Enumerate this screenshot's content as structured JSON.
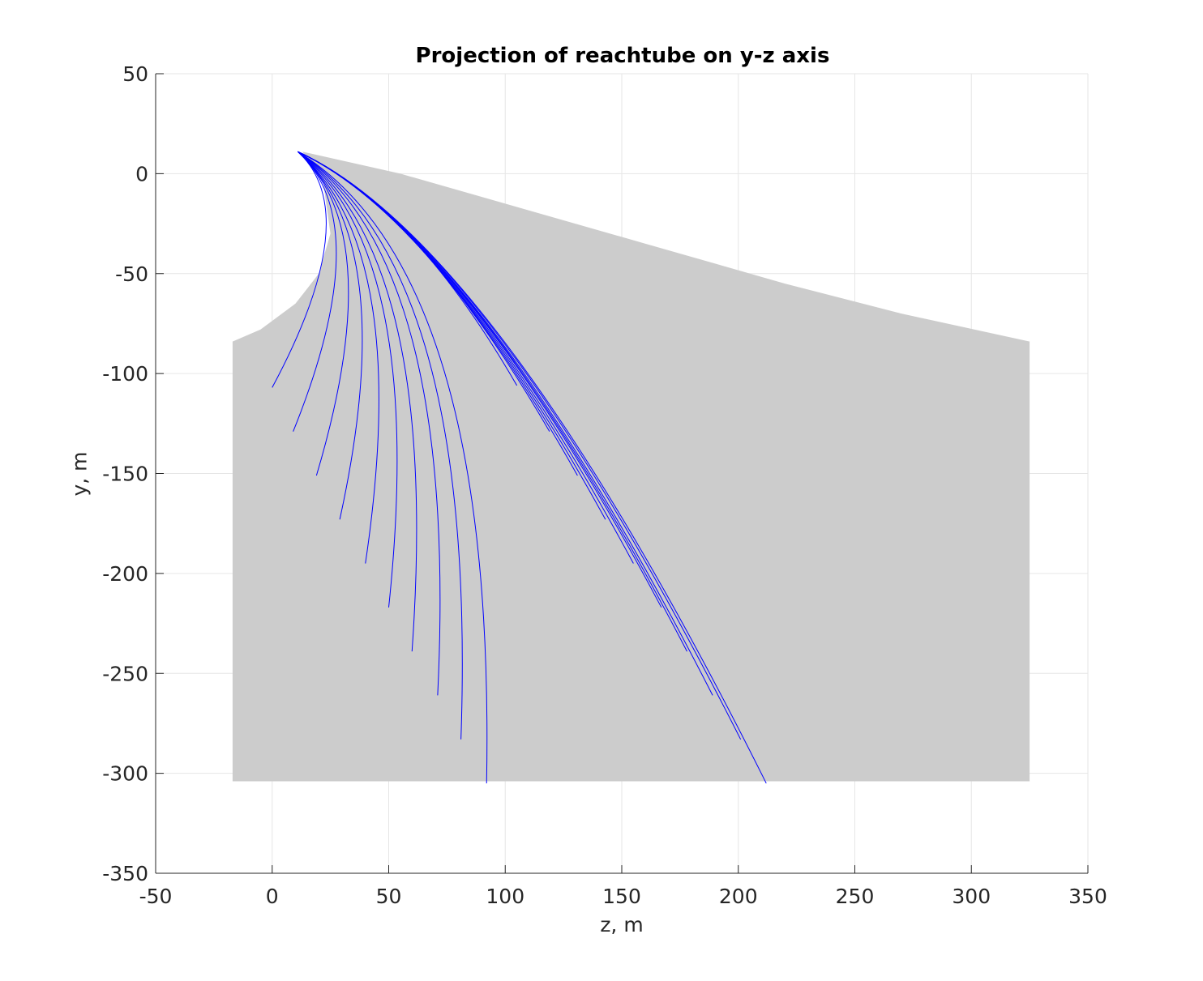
{
  "chart_data": {
    "type": "line",
    "title": "Projection of reachtube on y-z axis",
    "xlabel": "z, m",
    "ylabel": "y, m",
    "xlim": [
      -50,
      350
    ],
    "ylim": [
      -350,
      50
    ],
    "xticks": [
      "-50",
      "0",
      "50",
      "100",
      "150",
      "200",
      "250",
      "300",
      "350"
    ],
    "yticks": [
      "50",
      "0",
      "-50",
      "-100",
      "-150",
      "-200",
      "-250",
      "-300",
      "-350"
    ],
    "grid": true,
    "colors": {
      "reachtube": "#cccccc",
      "trajectories": "#0000ff",
      "grid": "#e6e6e6",
      "axis": "#262626"
    },
    "reachtube_region": {
      "upper_edge": [
        [
          13,
          11
        ],
        [
          55,
          0
        ],
        [
          100,
          -15
        ],
        [
          160,
          -35
        ],
        [
          220,
          -55
        ],
        [
          270,
          -70
        ],
        [
          325,
          -84
        ]
      ],
      "left_edge": [
        [
          13,
          11
        ],
        [
          22,
          -5
        ],
        [
          25,
          -30
        ],
        [
          20,
          -50
        ],
        [
          10,
          -65
        ],
        [
          -5,
          -78
        ],
        [
          -17,
          -84
        ]
      ],
      "bottom": -304,
      "left": -17,
      "right": 325
    },
    "series": [
      {
        "start": [
          11,
          11
        ],
        "control": [
          40,
          -20
        ],
        "end": [
          0,
          -107
        ]
      },
      {
        "start": [
          11,
          11
        ],
        "control": [
          45,
          -25
        ],
        "end": [
          9,
          -129
        ]
      },
      {
        "start": [
          11,
          11
        ],
        "control": [
          50,
          -30
        ],
        "end": [
          19,
          -151
        ]
      },
      {
        "start": [
          11,
          11
        ],
        "control": [
          55,
          -35
        ],
        "end": [
          29,
          -173
        ]
      },
      {
        "start": [
          11,
          11
        ],
        "control": [
          60,
          -38
        ],
        "end": [
          40,
          -195
        ]
      },
      {
        "start": [
          11,
          11
        ],
        "control": [
          66,
          -40
        ],
        "end": [
          50,
          -217
        ]
      },
      {
        "start": [
          11,
          11
        ],
        "control": [
          72,
          -42
        ],
        "end": [
          60,
          -239
        ]
      },
      {
        "start": [
          11,
          11
        ],
        "control": [
          80,
          -45
        ],
        "end": [
          71,
          -261
        ]
      },
      {
        "start": [
          11,
          11
        ],
        "control": [
          88,
          -48
        ],
        "end": [
          81,
          -283
        ]
      },
      {
        "start": [
          11,
          11
        ],
        "control": [
          96,
          -50
        ],
        "end": [
          92,
          -305
        ]
      },
      {
        "start": [
          11,
          11
        ],
        "control": [
          60,
          -15
        ],
        "end": [
          105,
          -106
        ]
      },
      {
        "start": [
          11,
          11
        ],
        "control": [
          64,
          -18
        ],
        "end": [
          119,
          -129
        ]
      },
      {
        "start": [
          11,
          11
        ],
        "control": [
          68,
          -20
        ],
        "end": [
          131,
          -151
        ]
      },
      {
        "start": [
          11,
          11
        ],
        "control": [
          72,
          -22
        ],
        "end": [
          143,
          -173
        ]
      },
      {
        "start": [
          11,
          11
        ],
        "control": [
          76,
          -24
        ],
        "end": [
          155,
          -195
        ]
      },
      {
        "start": [
          11,
          11
        ],
        "control": [
          80,
          -26
        ],
        "end": [
          167,
          -217
        ]
      },
      {
        "start": [
          11,
          11
        ],
        "control": [
          84,
          -28
        ],
        "end": [
          178,
          -239
        ]
      },
      {
        "start": [
          11,
          11
        ],
        "control": [
          88,
          -30
        ],
        "end": [
          189,
          -261
        ]
      },
      {
        "start": [
          11,
          11
        ],
        "control": [
          92,
          -32
        ],
        "end": [
          201,
          -283
        ]
      },
      {
        "start": [
          11,
          11
        ],
        "control": [
          96,
          -34
        ],
        "end": [
          212,
          -305
        ]
      }
    ]
  }
}
